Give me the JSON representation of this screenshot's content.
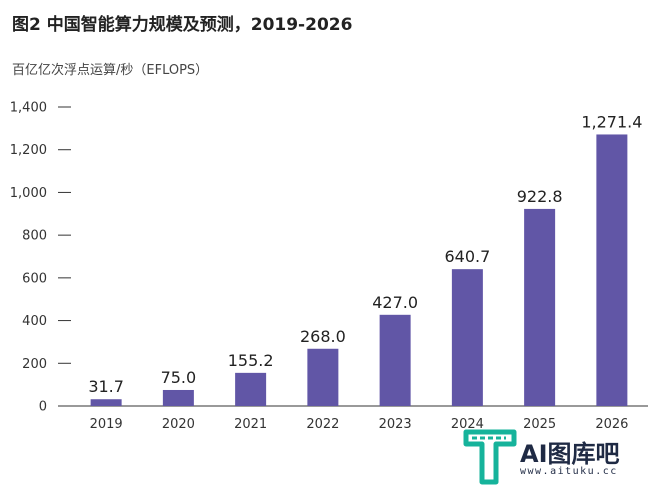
{
  "title": "图2  中国智能算力规模及预测，2019-2026",
  "unit_label": "百亿亿次浮点运算/秒（EFLOPS）",
  "watermark": {
    "brand": "AI图库吧",
    "url": "www.aituku.cc"
  },
  "colors": {
    "bar": "#6156a6",
    "axis": "#333333",
    "text": "#222222",
    "logo_teal": "#16b39b",
    "logo_dark": "#1f2a44"
  },
  "chart_data": {
    "type": "bar",
    "title": "图2  中国智能算力规模及预测，2019-2026",
    "ylabel": "百亿亿次浮点运算/秒（EFLOPS）",
    "xlabel": "",
    "categories": [
      "2019",
      "2020",
      "2021",
      "2022",
      "2023",
      "2024",
      "2025",
      "2026"
    ],
    "values": [
      31.7,
      75.0,
      155.2,
      268.0,
      427.0,
      640.7,
      922.8,
      1271.4
    ],
    "value_labels": [
      "31.7",
      "75.0",
      "155.2",
      "268.0",
      "427.0",
      "640.7",
      "922.8",
      "1,271.4"
    ],
    "ylim": [
      0,
      1400
    ],
    "yticks": [
      0,
      200,
      400,
      600,
      800,
      1000,
      1200,
      1400
    ],
    "ytick_labels": [
      "0",
      "200",
      "400",
      "600",
      "800",
      "1,000",
      "1,200",
      "1,400"
    ],
    "grid": false,
    "legend": "none"
  }
}
